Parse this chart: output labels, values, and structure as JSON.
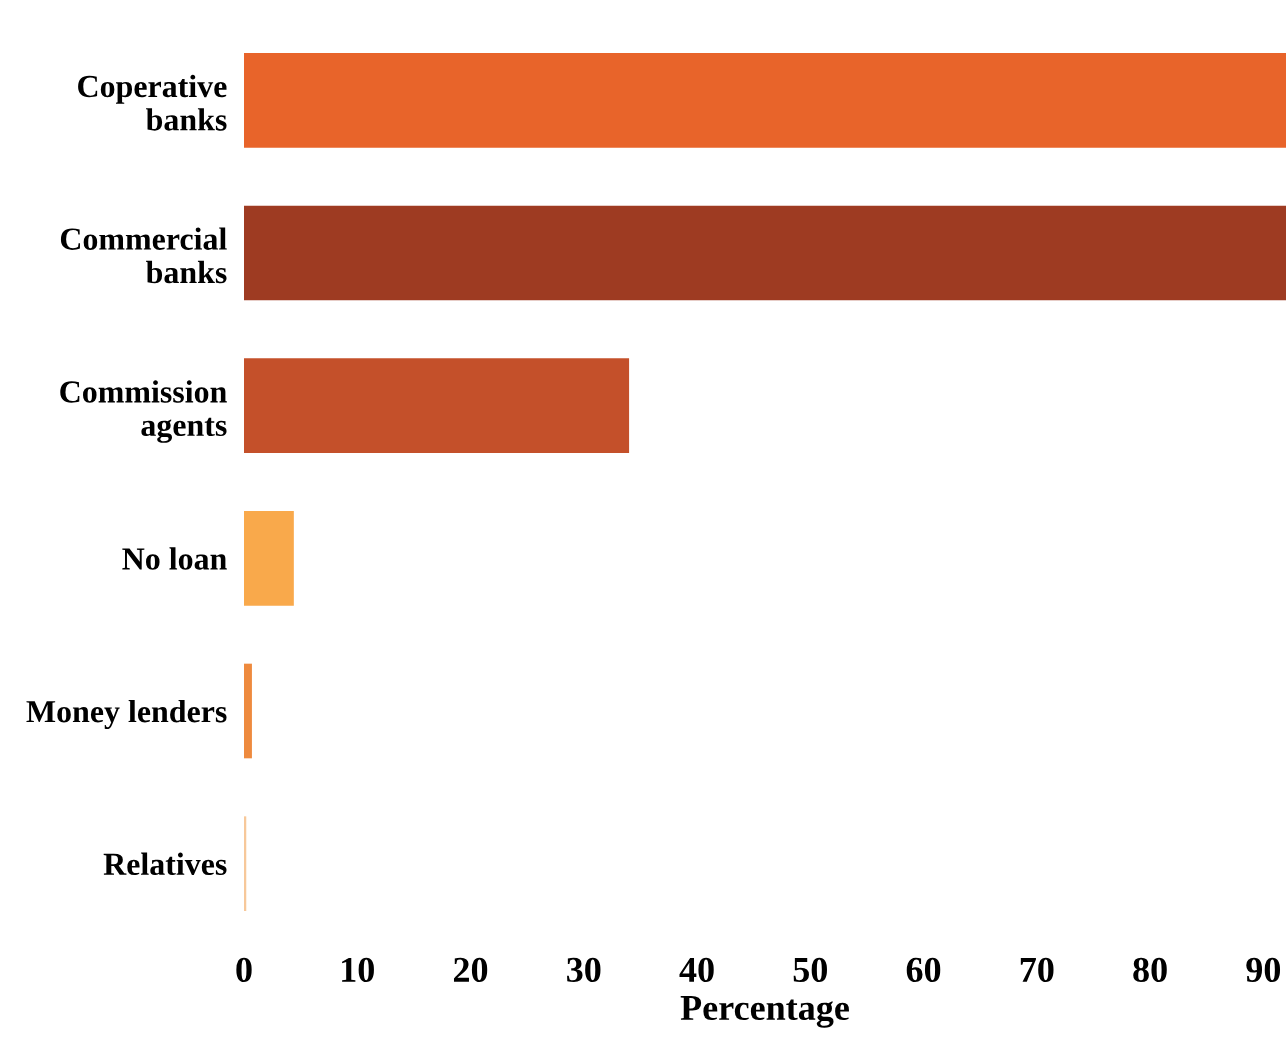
{
  "chart_data": {
    "type": "bar",
    "orientation": "horizontal",
    "xlabel": "Percentage",
    "categories": [
      "Coperative\nbanks",
      "Commercial\nbanks",
      "Commission\nagents",
      "No loan",
      "Money lenders",
      "Relatives"
    ],
    "values": [
      92,
      92,
      34,
      4.4,
      0.7,
      0.2
    ],
    "colors": [
      "#e8642a",
      "#9e3b22",
      "#c4502a",
      "#f9a94b",
      "#ee8a3e",
      "#f7c89a"
    ],
    "xlim": [
      0,
      92
    ],
    "xticks": [
      0,
      10,
      20,
      30,
      40,
      50,
      60,
      70,
      80,
      90
    ],
    "grid": false,
    "legend": false
  }
}
